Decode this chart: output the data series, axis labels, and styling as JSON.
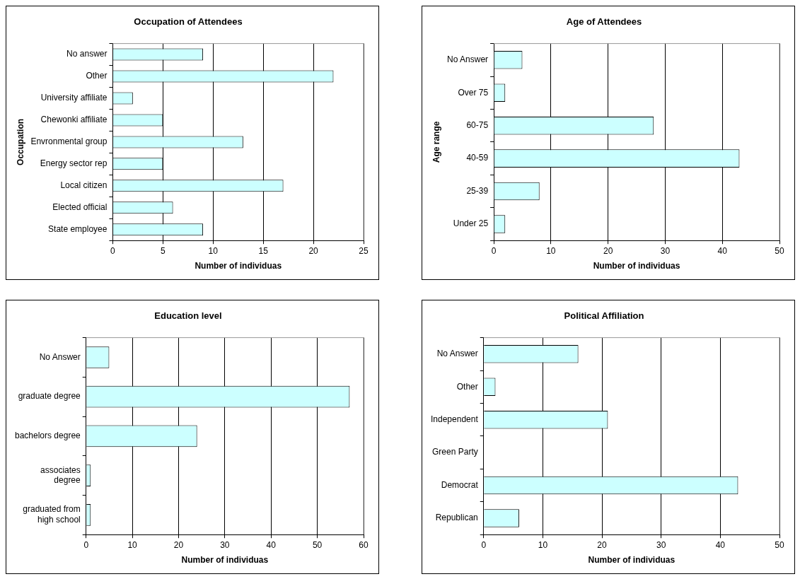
{
  "chart_data": [
    {
      "type": "bar",
      "orientation": "horizontal",
      "title": "Occupation of Attendees",
      "xlabel": "Number of individuas",
      "ylabel": "Occupation",
      "categories": [
        "No answer",
        "Other",
        "University affiliate",
        "Chewonki affiliate",
        "Envronmental group",
        "Energy sector rep",
        "Local citizen",
        "Elected official",
        "State employee"
      ],
      "values": [
        9,
        22,
        2,
        5,
        13,
        5,
        17,
        6,
        9
      ],
      "color": "#ccffff",
      "xlim": [
        0,
        25
      ],
      "xticks": [
        0,
        5,
        10,
        15,
        20,
        25
      ],
      "grid": "x",
      "legend": false
    },
    {
      "type": "bar",
      "orientation": "horizontal",
      "title": "Age of Attendees",
      "xlabel": "Number of individuas",
      "ylabel": "Age range",
      "categories": [
        "No Answer",
        "Over 75",
        "60-75",
        "40-59",
        "25-39",
        "Under 25"
      ],
      "values": [
        5,
        2,
        28,
        43,
        8,
        2
      ],
      "color": "#ccffff",
      "xlim": [
        0,
        50
      ],
      "xticks": [
        0,
        10,
        20,
        30,
        40,
        50
      ],
      "grid": "x",
      "legend": false
    },
    {
      "type": "bar",
      "orientation": "horizontal",
      "title": "Education level",
      "xlabel": "Number of individuas",
      "categories": [
        "No Answer",
        "graduate degree",
        "bachelors degree",
        "associates degree",
        "graduated from high school"
      ],
      "values": [
        5,
        57,
        24,
        1,
        1
      ],
      "color": "#ccffff",
      "xlim": [
        0,
        60
      ],
      "xticks": [
        0,
        10,
        20,
        30,
        40,
        50,
        60
      ],
      "grid": "x",
      "legend": false
    },
    {
      "type": "bar",
      "orientation": "horizontal",
      "title": "Political Affiliation",
      "xlabel": "Number of individuas",
      "categories": [
        "No Answer",
        "Other",
        "Independent",
        "Green Party",
        "Democrat",
        "Republican"
      ],
      "values": [
        16,
        2,
        21,
        0,
        43,
        6
      ],
      "color": "#ccffff",
      "xlim": [
        0,
        50
      ],
      "xticks": [
        0,
        10,
        20,
        30,
        40,
        50
      ],
      "grid": "x",
      "legend": false
    }
  ]
}
